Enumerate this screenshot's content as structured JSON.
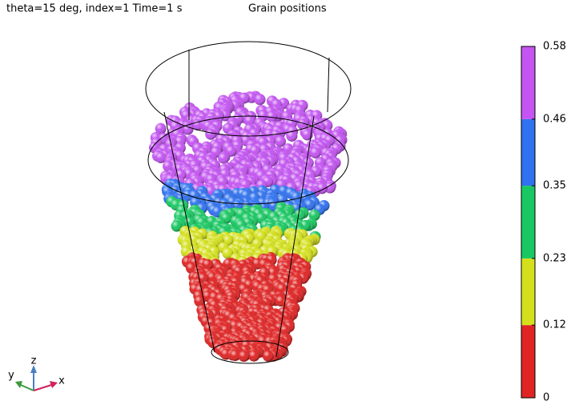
{
  "chart_data": {
    "type": "grain-plot",
    "subtitle": "theta=15 deg, index=1 Time=1 s",
    "title": "Grain positions",
    "colorbar": {
      "lim": [
        0,
        0.58
      ],
      "ticks": [
        0,
        0.12,
        0.23,
        0.35,
        0.46,
        0.58
      ],
      "colors": [
        "#e02424",
        "#d4e01c",
        "#19c862",
        "#3072f0",
        "#c455f2"
      ]
    },
    "axis_labels": {
      "x": "x",
      "y": "y",
      "z": "z"
    }
  }
}
